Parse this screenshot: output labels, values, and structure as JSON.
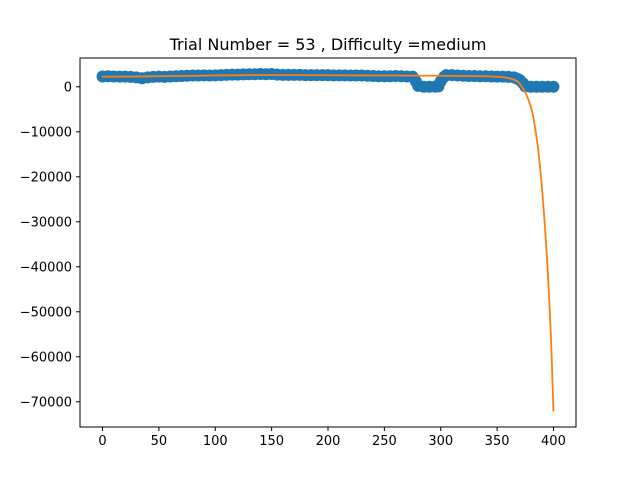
{
  "chart_data": {
    "type": "scatter",
    "title": "Trial Number = 53  , Difficulty =medium",
    "xlabel": "",
    "ylabel": "",
    "xlim": [
      -20,
      420
    ],
    "ylim": [
      -75600,
      6400
    ],
    "x_ticks": [
      0,
      50,
      100,
      150,
      200,
      250,
      300,
      350,
      400
    ],
    "y_ticks": [
      0,
      -10000,
      -20000,
      -30000,
      -40000,
      -50000,
      -60000,
      -70000
    ],
    "x_tick_labels": [
      "0",
      "50",
      "100",
      "150",
      "200",
      "250",
      "300",
      "350",
      "400"
    ],
    "y_tick_labels": [
      "0",
      "−10000",
      "−20000",
      "−30000",
      "−40000",
      "−50000",
      "−60000",
      "−70000"
    ],
    "grid": false,
    "legend": "none",
    "series": [
      {
        "kind": "scatter",
        "color": "#1f77b4",
        "points": [
          [
            0,
            2300
          ],
          [
            5,
            2350
          ],
          [
            10,
            2300
          ],
          [
            15,
            2250
          ],
          [
            20,
            2250
          ],
          [
            25,
            2200
          ],
          [
            30,
            2100
          ],
          [
            35,
            1900
          ],
          [
            40,
            2100
          ],
          [
            45,
            2200
          ],
          [
            50,
            2250
          ],
          [
            55,
            2200
          ],
          [
            60,
            2300
          ],
          [
            65,
            2350
          ],
          [
            70,
            2400
          ],
          [
            75,
            2450
          ],
          [
            80,
            2500
          ],
          [
            85,
            2500
          ],
          [
            90,
            2550
          ],
          [
            95,
            2500
          ],
          [
            100,
            2550
          ],
          [
            105,
            2600
          ],
          [
            110,
            2650
          ],
          [
            115,
            2700
          ],
          [
            120,
            2700
          ],
          [
            125,
            2750
          ],
          [
            130,
            2800
          ],
          [
            135,
            2800
          ],
          [
            140,
            2850
          ],
          [
            145,
            2800
          ],
          [
            150,
            2850
          ],
          [
            155,
            2700
          ],
          [
            160,
            2650
          ],
          [
            165,
            2650
          ],
          [
            170,
            2650
          ],
          [
            175,
            2650
          ],
          [
            180,
            2600
          ],
          [
            185,
            2600
          ],
          [
            190,
            2600
          ],
          [
            195,
            2600
          ],
          [
            200,
            2600
          ],
          [
            205,
            2550
          ],
          [
            210,
            2550
          ],
          [
            215,
            2550
          ],
          [
            220,
            2500
          ],
          [
            225,
            2500
          ],
          [
            230,
            2500
          ],
          [
            235,
            2450
          ],
          [
            240,
            2400
          ],
          [
            245,
            2350
          ],
          [
            250,
            2350
          ],
          [
            255,
            2350
          ],
          [
            260,
            2400
          ],
          [
            265,
            2350
          ],
          [
            270,
            2300
          ],
          [
            275,
            2250
          ],
          [
            278,
            1200
          ],
          [
            280,
            200
          ],
          [
            285,
            0
          ],
          [
            290,
            0
          ],
          [
            295,
            50
          ],
          [
            298,
            100
          ],
          [
            300,
            1200
          ],
          [
            303,
            2200
          ],
          [
            305,
            2600
          ],
          [
            310,
            2600
          ],
          [
            315,
            2500
          ],
          [
            320,
            2450
          ],
          [
            325,
            2400
          ],
          [
            330,
            2400
          ],
          [
            335,
            2350
          ],
          [
            340,
            2350
          ],
          [
            345,
            2300
          ],
          [
            350,
            2250
          ],
          [
            355,
            2250
          ],
          [
            360,
            2200
          ],
          [
            365,
            2100
          ],
          [
            368,
            1800
          ],
          [
            370,
            1500
          ],
          [
            373,
            800
          ],
          [
            375,
            100
          ],
          [
            380,
            0
          ],
          [
            385,
            0
          ],
          [
            390,
            0
          ],
          [
            395,
            0
          ],
          [
            400,
            0
          ]
        ]
      },
      {
        "kind": "line",
        "color": "#ff7f0e",
        "points": [
          [
            0,
            2250
          ],
          [
            25,
            2280
          ],
          [
            50,
            2340
          ],
          [
            75,
            2420
          ],
          [
            100,
            2520
          ],
          [
            125,
            2580
          ],
          [
            150,
            2600
          ],
          [
            175,
            2590
          ],
          [
            200,
            2560
          ],
          [
            225,
            2530
          ],
          [
            250,
            2510
          ],
          [
            275,
            2490
          ],
          [
            300,
            2450
          ],
          [
            325,
            2400
          ],
          [
            345,
            2300
          ],
          [
            355,
            2150
          ],
          [
            360,
            1950
          ],
          [
            365,
            1600
          ],
          [
            368,
            1200
          ],
          [
            370,
            700
          ],
          [
            372,
            0
          ],
          [
            374,
            -800
          ],
          [
            376,
            -1800
          ],
          [
            378,
            -3000
          ],
          [
            380,
            -4500
          ],
          [
            382,
            -6500
          ],
          [
            384,
            -9500
          ],
          [
            386,
            -13000
          ],
          [
            388,
            -17500
          ],
          [
            390,
            -23000
          ],
          [
            392,
            -29500
          ],
          [
            394,
            -37000
          ],
          [
            396,
            -46000
          ],
          [
            398,
            -57000
          ],
          [
            400,
            -72000
          ]
        ]
      }
    ]
  }
}
